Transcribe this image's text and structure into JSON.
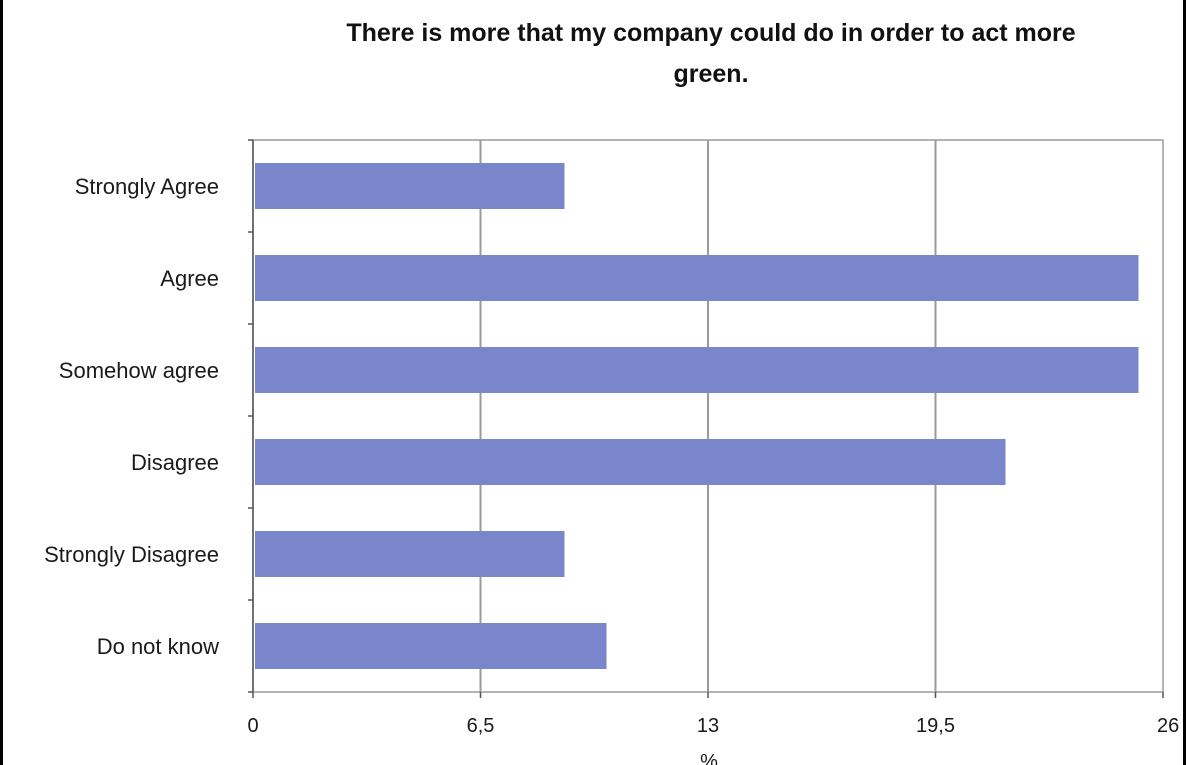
{
  "chart_data": {
    "type": "bar",
    "orientation": "horizontal",
    "title_lines": [
      "There is more that my company could do in order to act more",
      "green."
    ],
    "categories": [
      "Strongly Agree",
      "Agree",
      "Somehow agree",
      "Disagree",
      "Strongly Disagree",
      "Do not know"
    ],
    "values": [
      8.9,
      25.3,
      25.3,
      21.5,
      8.9,
      10.1
    ],
    "xlabel": "%",
    "xlim": [
      0,
      26
    ],
    "xticks": [
      "0",
      "6,5",
      "13",
      "19,5",
      "26"
    ],
    "grid": true,
    "colors": {
      "bar": "#7a86cc",
      "grid": "#9a9a9a",
      "axis": "#555555"
    }
  }
}
